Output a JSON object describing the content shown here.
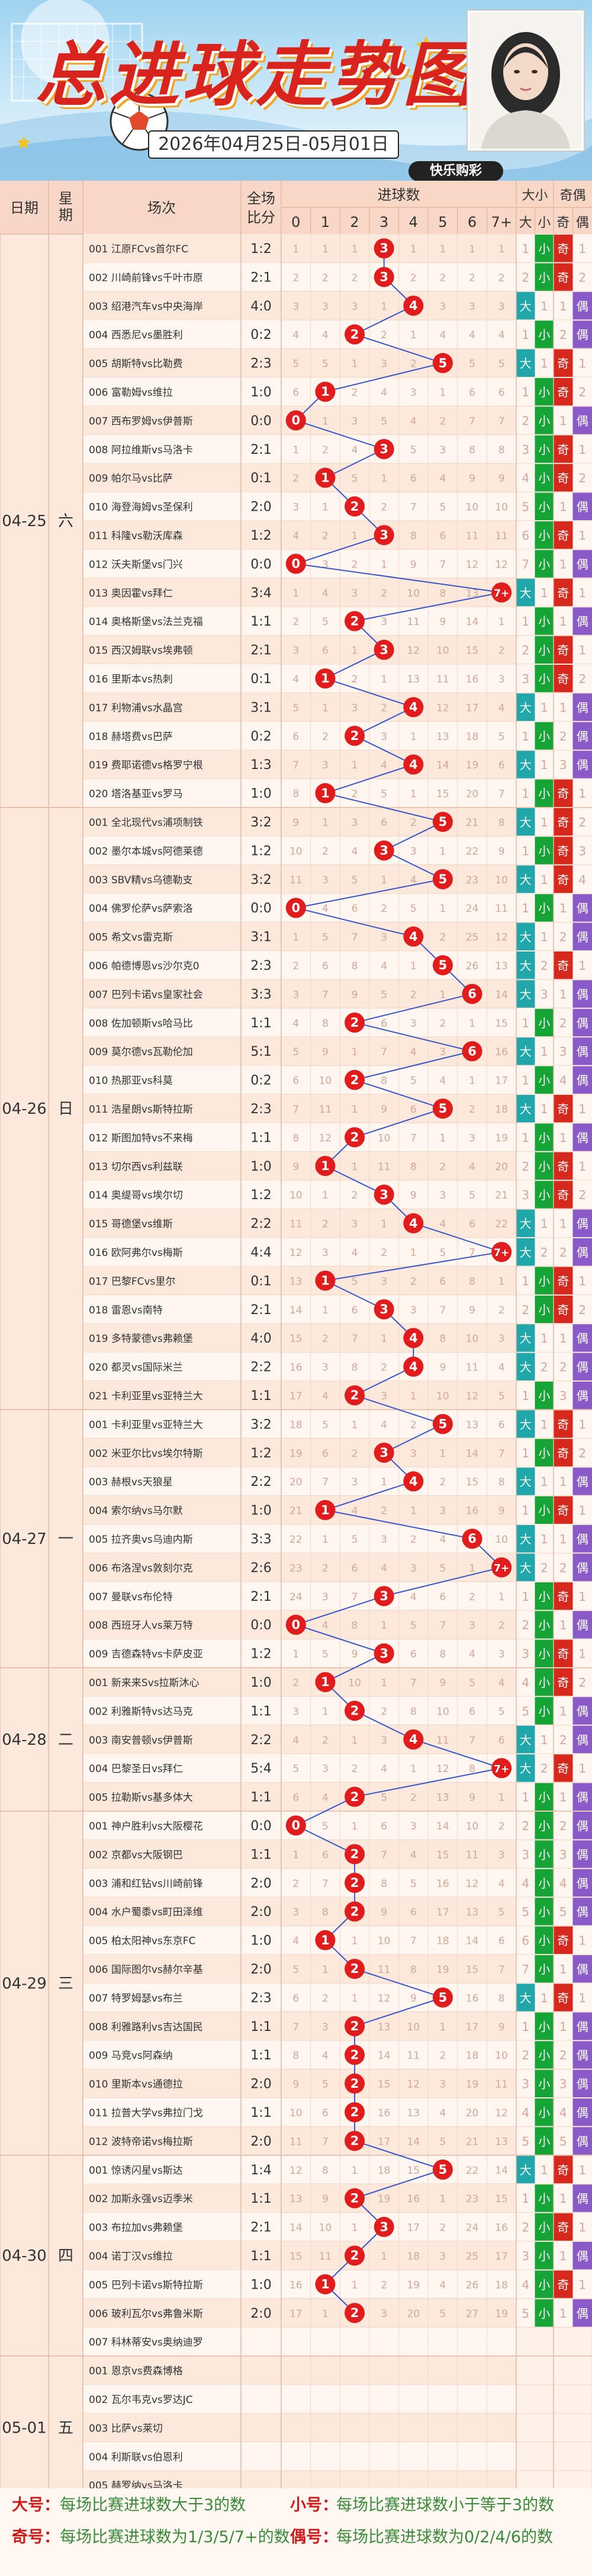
{
  "header": {
    "title": "总进球走势图",
    "date_range": "2026年04月25日-05月01日",
    "brand": "快乐购彩"
  },
  "columns": {
    "date": "日期",
    "weekday": "星期",
    "match": "场次",
    "score_top": "全场",
    "score_bottom": "比分",
    "goals": "进球数",
    "goal_labels": [
      "0",
      "1",
      "2",
      "3",
      "4",
      "5",
      "6",
      "7+"
    ],
    "bigsmall": "大小",
    "oddeven": "奇偶",
    "big": "大",
    "small": "小",
    "odd": "奇",
    "even": "偶"
  },
  "groups": [
    {
      "date": "04-25",
      "weekday": "六",
      "count": 20
    },
    {
      "date": "04-26",
      "weekday": "日",
      "count": 21
    },
    {
      "date": "04-27",
      "weekday": "一",
      "count": 9
    },
    {
      "date": "04-28",
      "weekday": "二",
      "count": 5
    },
    {
      "date": "04-29",
      "weekday": "三",
      "count": 12
    },
    {
      "date": "04-30",
      "weekday": "四",
      "count": 7
    },
    {
      "date": "05-01",
      "weekday": "五",
      "count": 5
    }
  ],
  "matches": [
    {
      "name": "001 江原FCvs首尔FC",
      "score": "1:2"
    },
    {
      "name": "002 川崎前锋vs千叶市原",
      "score": "2:1"
    },
    {
      "name": "003 绍港汽车vs中央海岸",
      "score": "4:0"
    },
    {
      "name": "004 西悉尼vs墨胜利",
      "score": "0:2"
    },
    {
      "name": "005 胡斯特vs比勒费",
      "score": "2:3"
    },
    {
      "name": "006 富勒姆vs维拉",
      "score": "1:0"
    },
    {
      "name": "007 西布罗姆vs伊普斯",
      "score": "0:0"
    },
    {
      "name": "008 阿拉维斯vs马洛卡",
      "score": "2:1"
    },
    {
      "name": "009 帕尔马vs比萨",
      "score": "0:1"
    },
    {
      "name": "010 海登海姆vs圣保利",
      "score": "2:0"
    },
    {
      "name": "011 科隆vs勒沃库森",
      "score": "1:2"
    },
    {
      "name": "012 沃夫斯堡vs门兴",
      "score": "0:0"
    },
    {
      "name": "013 奥因霍vs拜仁",
      "score": "3:4"
    },
    {
      "name": "014 奥格斯堡vs法兰克福",
      "score": "1:1"
    },
    {
      "name": "015 西汉姆联vs埃弗顿",
      "score": "2:1"
    },
    {
      "name": "016 里斯本vs热刺",
      "score": "0:1"
    },
    {
      "name": "017 利物浦vs水晶宫",
      "score": "3:1"
    },
    {
      "name": "018 赫塔费vs巴萨",
      "score": "0:2"
    },
    {
      "name": "019 费耶诺德vs格罗宁根",
      "score": "1:3"
    },
    {
      "name": "020 塔洛基亚vs罗马",
      "score": "1:0"
    },
    {
      "name": "001 全北现代vs浦项制铁",
      "score": "3:2"
    },
    {
      "name": "002 墨尔本城vs阿德莱德",
      "score": "1:2"
    },
    {
      "name": "003 SBV精vs乌德勒支",
      "score": "3:2"
    },
    {
      "name": "004 佛罗伦萨vs萨索洛",
      "score": "0:0"
    },
    {
      "name": "005 希文vs雷克斯",
      "score": "3:1"
    },
    {
      "name": "006 帕德博恩vs沙尔克0",
      "score": "2:3"
    },
    {
      "name": "007 巴列卡诺vs皇家社会",
      "score": "3:3"
    },
    {
      "name": "008 佐加顿斯vs哈马比",
      "score": "1:1"
    },
    {
      "name": "009 莫尔德vs瓦勒伦加",
      "score": "5:1"
    },
    {
      "name": "010 热那亚vs科莫",
      "score": "0:2"
    },
    {
      "name": "011 浩星朗vs斯特拉斯",
      "score": "2:3"
    },
    {
      "name": "012 斯图加特vs不来梅",
      "score": "1:1"
    },
    {
      "name": "013 切尔西vs利兹联",
      "score": "1:0"
    },
    {
      "name": "014 奥缇哥vs埃尔切",
      "score": "1:2"
    },
    {
      "name": "015 哥德堡vs维斯",
      "score": "2:2"
    },
    {
      "name": "016 欧阿弗尔vs梅斯",
      "score": "4:4"
    },
    {
      "name": "017 巴黎FCvs里尔",
      "score": "0:1"
    },
    {
      "name": "018 雷恩vs南特",
      "score": "2:1"
    },
    {
      "name": "019 多特蒙德vs弗赖堡",
      "score": "4:0"
    },
    {
      "name": "020 都灵vs国际米兰",
      "score": "2:2"
    },
    {
      "name": "021 卡利亚里vs亚特兰大",
      "score": "1:1"
    },
    {
      "name": "001 卡利亚里vs亚特兰大",
      "score": "3:2"
    },
    {
      "name": "002 米亚尔比vs埃尔特斯",
      "score": "1:2"
    },
    {
      "name": "003 赫根vs天狼星",
      "score": "2:2"
    },
    {
      "name": "004 索尔纳vs马尔默",
      "score": "1:0"
    },
    {
      "name": "005 拉齐奥vs乌迪内斯",
      "score": "3:3"
    },
    {
      "name": "006 布洛涅vs敦刻尔克",
      "score": "2:6"
    },
    {
      "name": "007 曼联vs布伦特",
      "score": "2:1"
    },
    {
      "name": "008 西班牙人vs莱万特",
      "score": "0:0"
    },
    {
      "name": "009 吉德森特vs卡萨皮亚",
      "score": "1:2"
    },
    {
      "name": "001 新来来Svs拉斯沐心",
      "score": "1:0"
    },
    {
      "name": "002 利雅斯特vs达马克",
      "score": "1:1"
    },
    {
      "name": "003 南安普顿vs伊普斯",
      "score": "2:2"
    },
    {
      "name": "004 巴黎圣日vs拜仁",
      "score": "5:4"
    },
    {
      "name": "005 拉勒斯vs基多体大",
      "score": "1:1"
    },
    {
      "name": "001 神户胜利vs大阪樱花",
      "score": "0:0"
    },
    {
      "name": "002 京都vs大阪钢巴",
      "score": "1:1"
    },
    {
      "name": "003 浦和红钻vs川崎前锋",
      "score": "2:0"
    },
    {
      "name": "004 水户蜀黍vs町田泽维",
      "score": "2:0"
    },
    {
      "name": "005 柏太阳神vs东京FC",
      "score": "1:0"
    },
    {
      "name": "006 国际图尔vs赫尔辛基",
      "score": "2:0"
    },
    {
      "name": "007 特罗姆瑟vs布兰",
      "score": "2:3"
    },
    {
      "name": "008 利雅路利vs吉达国民",
      "score": "1:1"
    },
    {
      "name": "009 马竞vs阿森纳",
      "score": "1:1"
    },
    {
      "name": "010 里斯本vs通德拉",
      "score": "2:0"
    },
    {
      "name": "011 拉普大学vs弗拉门戈",
      "score": "1:1"
    },
    {
      "name": "012 波特帝诺vs梅拉斯",
      "score": "2:0"
    },
    {
      "name": "001 惊诱闪星vs斯达",
      "score": "1:4"
    },
    {
      "name": "002 加斯永强vs迈季米",
      "score": "1:1"
    },
    {
      "name": "003 布拉加vs弗赖堡",
      "score": "2:1"
    },
    {
      "name": "004 诺丁汉vs维拉",
      "score": "1:1"
    },
    {
      "name": "005 巴列卡诺vs斯特拉斯",
      "score": "1:0"
    },
    {
      "name": "006 玻利瓦尔vs弗鲁米斯",
      "score": "2:0"
    },
    {
      "name": "007 科林蒂安vs奥纳迪罗",
      "score": ""
    },
    {
      "name": "001 恩京vs费森博格",
      "score": ""
    },
    {
      "name": "002 瓦尔韦克vs罗达JC",
      "score": ""
    },
    {
      "name": "003 比萨vs莱切",
      "score": ""
    },
    {
      "name": "004 利斯联vs伯恩利",
      "score": ""
    },
    {
      "name": "005 赫罗纳vs马洛卡",
      "score": ""
    }
  ],
  "footer": {
    "big_key": "大号：",
    "big_desc": "每场比赛进球数大于3的数",
    "small_key": "小号：",
    "small_desc": "每场比赛进球数小于等于3的数",
    "odd_key": "奇号：",
    "odd_desc": "每场比赛进球数为1/3/5/7+的数",
    "even_key": "偶号：",
    "even_desc": "每场比赛进球数为0/2/4/6的数"
  },
  "colors": {
    "ball": "#e21c1c",
    "line": "#3a55c8",
    "big": "#1fa7a9",
    "small": "#17a437",
    "odd": "#d6281d",
    "even": "#8a5bc8",
    "row_even": "#fde8dc",
    "row_odd": "#fff6f0",
    "header_pink": "#f9d7c6",
    "miss_text": "#d4a79a"
  }
}
